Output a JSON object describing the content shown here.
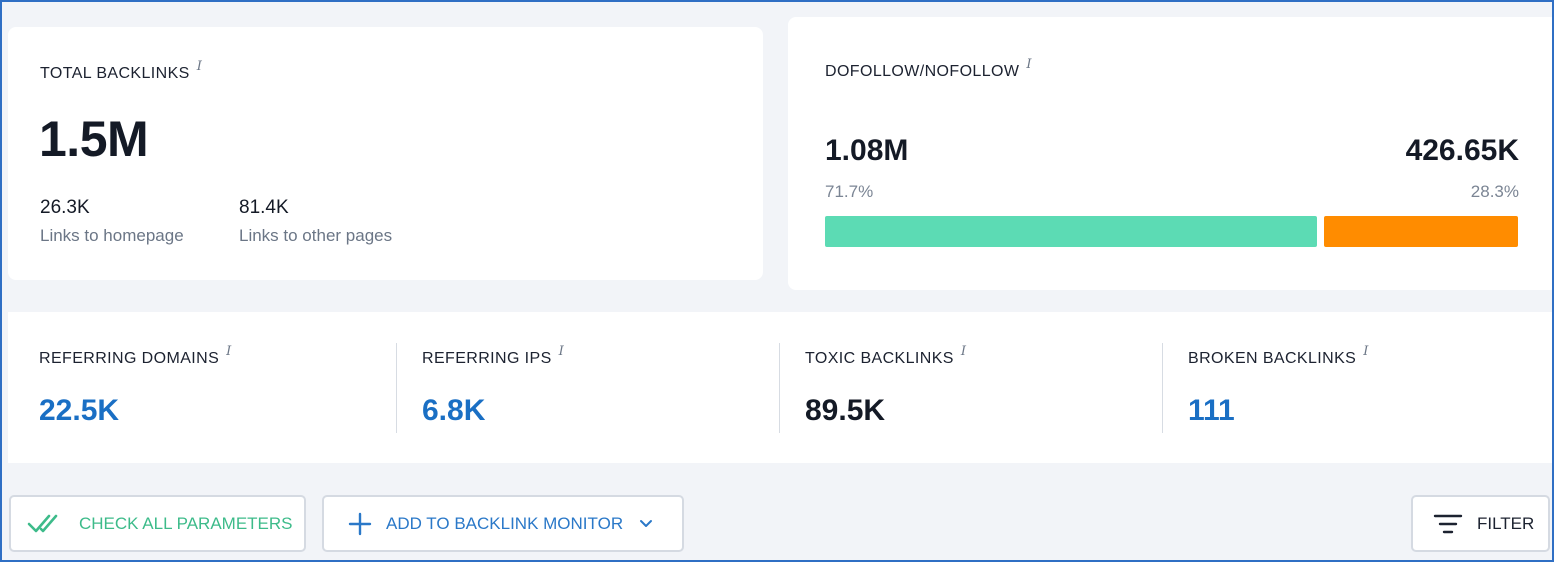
{
  "total_backlinks": {
    "title": "TOTAL BACKLINKS",
    "value": "1.5M",
    "homepage": {
      "value": "26.3K",
      "caption": "Links to homepage"
    },
    "other": {
      "value": "81.4K",
      "caption": "Links to other pages"
    }
  },
  "dofollow_nofollow": {
    "title": "DOFOLLOW/NOFOLLOW",
    "dofollow": {
      "value": "1.08M",
      "percent": "71.7%",
      "fraction": 0.717,
      "color": "#5cdbb4"
    },
    "nofollow": {
      "value": "426.65K",
      "percent": "28.3%",
      "fraction": 0.283,
      "color": "#ff8c00"
    }
  },
  "stats": [
    {
      "title": "REFERRING DOMAINS",
      "value": "22.5K",
      "color": "#1a6fc4"
    },
    {
      "title": "REFERRING IPS",
      "value": "6.8K",
      "color": "#1a6fc4"
    },
    {
      "title": "TOXIC BACKLINKS",
      "value": "89.5K",
      "color": "#141a26"
    },
    {
      "title": "BROKEN BACKLINKS",
      "value": "111",
      "color": "#1a6fc4"
    }
  ],
  "info_glyph": "i",
  "toolbar": {
    "check_label": "CHECK ALL PARAMETERS",
    "check_icon": "double-check-icon",
    "add_label": "ADD TO BACKLINK MONITOR",
    "add_icon": "plus-icon",
    "add_dropdown_icon": "chevron-down-icon",
    "filter_label": "FILTER",
    "filter_icon": "filter-icon"
  },
  "colors": {
    "accent_blue": "#1a6fc4",
    "check_green": "#3dbb8a",
    "frame_border": "#2f6fc4"
  }
}
